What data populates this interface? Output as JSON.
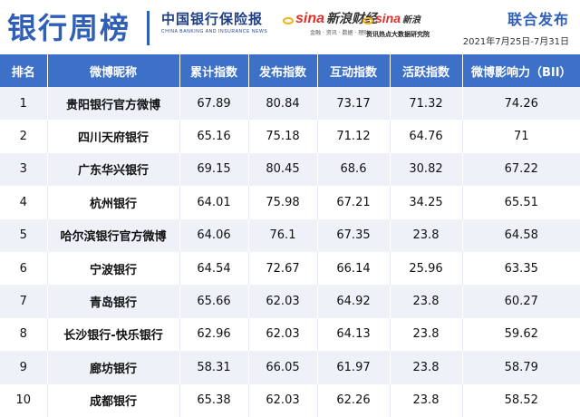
{
  "header": {
    "title": "银行周榜",
    "logo_cn": "中国银行保险报",
    "logo_en": "CHINA BANKING AND INSURANCE NEWS",
    "sina_finance": {
      "wordmark": "sina",
      "name": "新浪财经",
      "tags": "金融 · 资讯 · 数据 · 理财"
    },
    "sina_news": {
      "wordmark": "sina",
      "name": "新浪",
      "sub": "资讯热点大数据研究院"
    },
    "publish_label": "联合发布",
    "date_range": "2021年7月25日-7月31日"
  },
  "table": {
    "columns": [
      "排名",
      "微博昵称",
      "累计指数",
      "发布指数",
      "互动指数",
      "活跃指数",
      "微博影响力（BII）"
    ],
    "rows": [
      [
        "1",
        "贵阳银行官方微博",
        "67.89",
        "80.84",
        "73.17",
        "71.32",
        "74.26"
      ],
      [
        "2",
        "四川天府银行",
        "65.16",
        "75.18",
        "71.12",
        "64.76",
        "71"
      ],
      [
        "3",
        "广东华兴银行",
        "69.15",
        "80.45",
        "68.6",
        "30.82",
        "67.22"
      ],
      [
        "4",
        "杭州银行",
        "64.01",
        "75.98",
        "67.21",
        "34.25",
        "65.51"
      ],
      [
        "5",
        "哈尔滨银行官方微博",
        "64.06",
        "76.1",
        "67.35",
        "23.8",
        "64.58"
      ],
      [
        "6",
        "宁波银行",
        "64.54",
        "72.67",
        "66.14",
        "25.96",
        "63.35"
      ],
      [
        "7",
        "青岛银行",
        "65.66",
        "62.03",
        "64.92",
        "23.8",
        "60.27"
      ],
      [
        "8",
        "长沙银行-快乐银行",
        "62.96",
        "62.03",
        "64.13",
        "23.8",
        "59.62"
      ],
      [
        "9",
        "廊坊银行",
        "58.31",
        "66.05",
        "61.97",
        "23.8",
        "58.79"
      ],
      [
        "10",
        "成都银行",
        "65.38",
        "62.03",
        "62.26",
        "23.8",
        "58.52"
      ]
    ]
  }
}
